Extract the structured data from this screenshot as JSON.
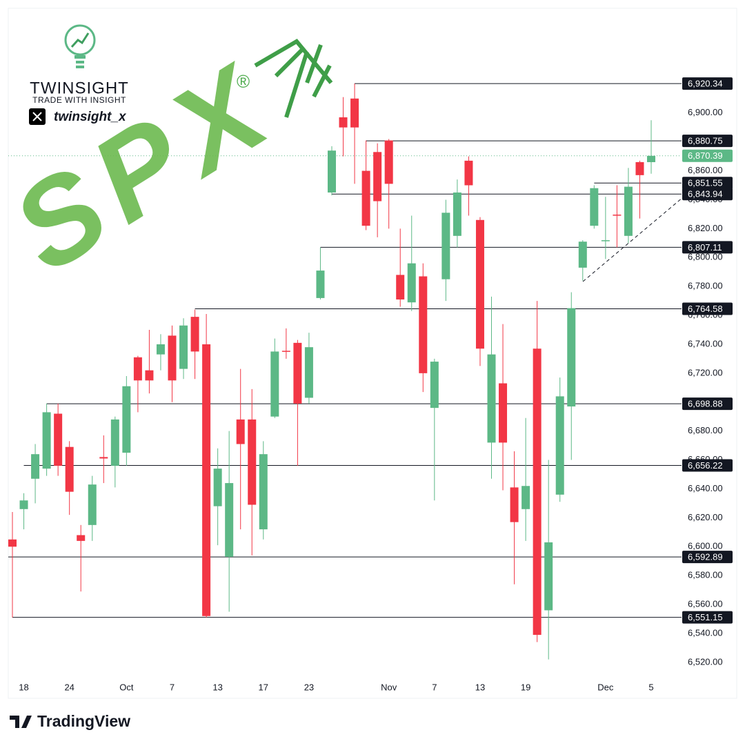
{
  "chart_data": {
    "type": "candlestick",
    "categories": [
      null,
      "18",
      null,
      null,
      null,
      "24",
      null,
      null,
      null,
      null,
      "Oct",
      null,
      null,
      null,
      "7",
      null,
      null,
      null,
      "13",
      null,
      null,
      null,
      "17",
      null,
      null,
      null,
      "23",
      null,
      null,
      null,
      null,
      null,
      null,
      "Nov",
      null,
      null,
      null,
      "7",
      null,
      null,
      null,
      "13",
      null,
      null,
      null,
      "19",
      null,
      null,
      null,
      null,
      null,
      null,
      "Dec",
      null,
      null,
      null,
      "5"
    ],
    "open": [
      6605,
      6626,
      6647,
      6654,
      6692,
      6669,
      6608,
      6615,
      6662,
      6656,
      6665,
      6731,
      6722,
      6733,
      6746,
      6723,
      6759,
      6740,
      6628,
      6593,
      6688,
      6688,
      6612,
      6690,
      6735.5,
      6741,
      6703,
      6772,
      6845,
      6897,
      6910,
      6860,
      6873,
      6881,
      6788,
      6769,
      6787,
      6696,
      6785,
      6815,
      6867,
      6826,
      6672,
      6713,
      6641,
      6626,
      6737,
      6556,
      6636,
      6697,
      6793,
      6822,
      6811.5,
      6829.7,
      6815,
      6866,
      6866
    ],
    "high": [
      6624,
      6637,
      6671,
      6699,
      6699,
      6673,
      6615,
      6649,
      6677,
      6690,
      6718,
      6732,
      6750,
      6747,
      6753,
      6758,
      6764,
      6761,
      6668,
      6680,
      6723,
      6709,
      6673,
      6744,
      6751,
      6743,
      6748,
      6807,
      6877,
      6911,
      6920.34,
      6881,
      6879,
      6882,
      6820,
      6829,
      6796,
      6730,
      6840,
      6854,
      6870,
      6828,
      6773,
      6754,
      6666,
      6689,
      6770,
      6660,
      6717,
      6776,
      6812,
      6850,
      6842,
      6850,
      6862,
      6867,
      6895
    ],
    "low": [
      6551,
      6612,
      6630,
      6649,
      6649,
      6622,
      6569,
      6604,
      6644,
      6641,
      6656,
      6693,
      6706,
      6722,
      6700,
      6716,
      6716,
      6551,
      6601,
      6555,
      6612,
      6594,
      6605,
      6689,
      6730,
      6656,
      6699,
      6771,
      6843,
      6870,
      6851,
      6819,
      6814,
      6820,
      6766,
      6763,
      6707,
      6632,
      6770,
      6807,
      6829,
      6725,
      6647,
      6639,
      6574,
      6604,
      6534,
      6522,
      6631,
      6660,
      6784,
      6820,
      6799,
      6807,
      6810,
      6827,
      6858
    ],
    "close": [
      6600,
      6632,
      6664,
      6693,
      6656,
      6638,
      6604,
      6643,
      6661,
      6688,
      6711,
      6715,
      6715,
      6740,
      6715,
      6753,
      6735,
      6552,
      6654,
      6644,
      6671,
      6629,
      6664,
      6735,
      6735,
      6699,
      6738,
      6791,
      6874,
      6890,
      6890,
      6822,
      6839,
      6851,
      6771,
      6796,
      6720,
      6728,
      6831,
      6845,
      6850,
      6737,
      6733,
      6672,
      6617,
      6642,
      6539,
      6603,
      6704,
      6765,
      6811,
      6848,
      6812,
      6829.2,
      6849,
      6857,
      6870.39
    ],
    "up_color": "#5cb886",
    "down_color": "#f23645",
    "ylim": [
      6508,
      6971
    ],
    "yticks": [
      {
        "value": 6520,
        "label": "6,520.00"
      },
      {
        "value": 6540,
        "label": "6,540.00"
      },
      {
        "value": 6560,
        "label": "6,560.00"
      },
      {
        "value": 6580,
        "label": "6,580.00"
      },
      {
        "value": 6600,
        "label": "6,600.00"
      },
      {
        "value": 6620,
        "label": "6,620.00"
      },
      {
        "value": 6640,
        "label": "6,640.00"
      },
      {
        "value": 6660,
        "label": "6,660.00"
      },
      {
        "value": 6680,
        "label": "6,680.00"
      },
      {
        "value": 6700,
        "label": "6,700.00"
      },
      {
        "value": 6720,
        "label": "6,720.00"
      },
      {
        "value": 6740,
        "label": "6,740.00"
      },
      {
        "value": 6760,
        "label": "6,760.00"
      },
      {
        "value": 6780,
        "label": "6,780.00"
      },
      {
        "value": 6800,
        "label": "6,800.00"
      },
      {
        "value": 6820,
        "label": "6,820.00"
      },
      {
        "value": 6840,
        "label": "6,840.00"
      },
      {
        "value": 6860,
        "label": "6,860.00"
      },
      {
        "value": 6880,
        "label": "6,880.00"
      },
      {
        "value": 6900,
        "label": "6,900.00"
      }
    ],
    "levels": [
      {
        "value": 6920.34,
        "label": "6,920.34"
      },
      {
        "value": 6880.75,
        "label": "6,880.75"
      },
      {
        "value": 6851.55,
        "label": "6,851.55"
      },
      {
        "value": 6843.94,
        "label": "6,843.94"
      },
      {
        "value": 6807.11,
        "label": "6,807.11"
      },
      {
        "value": 6764.58,
        "label": "6,764.58"
      },
      {
        "value": 6698.88,
        "label": "6,698.88"
      },
      {
        "value": 6656.22,
        "label": "6,656.22"
      },
      {
        "value": 6592.89,
        "label": "6,592.89"
      },
      {
        "value": 6551.15,
        "label": "6,551.15"
      }
    ],
    "last_price": {
      "value": 6870.39,
      "label": "6,870.39"
    },
    "grid": false
  },
  "branding": {
    "logo_name": "TWINSIGHT",
    "logo_tagline": "TRADE WITH INSIGHT",
    "handle": "twinsight_x",
    "symbol": "SPX",
    "registered": "®",
    "platform": "TradingView"
  }
}
